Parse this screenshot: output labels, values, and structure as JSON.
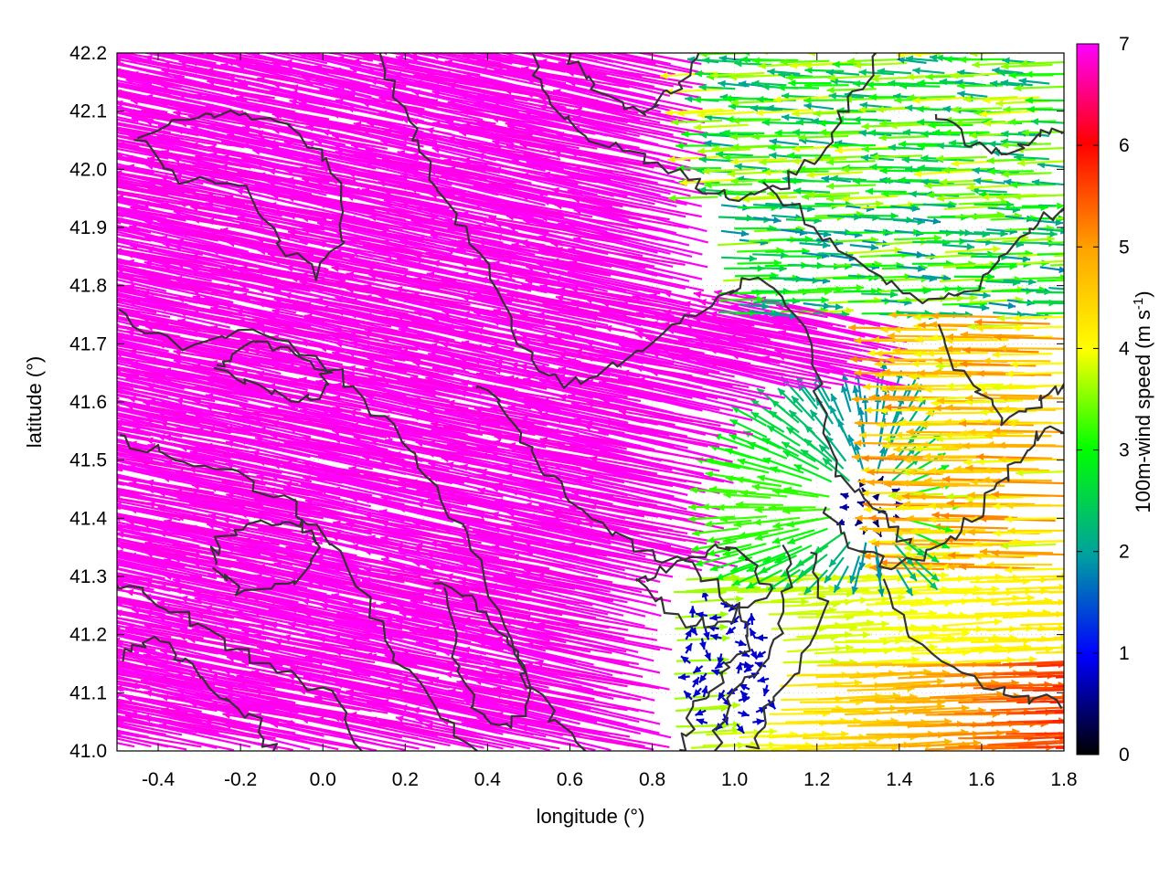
{
  "chart_data": {
    "type": "vector-field",
    "title": "",
    "xlabel": "longitude (°)",
    "ylabel": "latitude (°)",
    "xlim": [
      -0.5,
      1.8
    ],
    "ylim": [
      41.0,
      42.2
    ],
    "xticks": [
      "-0.4",
      "-0.2",
      "0.0",
      "0.2",
      "0.4",
      "0.6",
      "0.8",
      "1.0",
      "1.2",
      "1.4",
      "1.6",
      "1.8"
    ],
    "yticks": [
      "41.0",
      "41.1",
      "41.2",
      "41.3",
      "41.4",
      "41.5",
      "41.6",
      "41.7",
      "41.8",
      "41.9",
      "42.0",
      "42.1",
      "42.2"
    ],
    "grid": true,
    "colorbar": {
      "label_main": "100m-wind speed (m s",
      "label_sup": "-1",
      "label_close": ")",
      "range": [
        0,
        7
      ],
      "ticks": [
        "0",
        "1",
        "2",
        "3",
        "4",
        "5",
        "6",
        "7"
      ],
      "colormap": [
        "#000000",
        "#0000ff",
        "#00a0a0",
        "#00ff00",
        "#ffff00",
        "#ffa500",
        "#ff0000",
        "#ff00ff"
      ]
    },
    "contour_color": "#333333",
    "vectors": {
      "description_regions": [
        {
          "region": "west and central",
          "speed": 7,
          "direction": "toward west / north-west"
        },
        {
          "region": "east, south of 41.3",
          "speed": 4,
          "direction": "toward east"
        },
        {
          "region": "around lon 1.0 lat 41.1",
          "speed": 1,
          "direction": "weak, variable"
        }
      ]
    }
  }
}
